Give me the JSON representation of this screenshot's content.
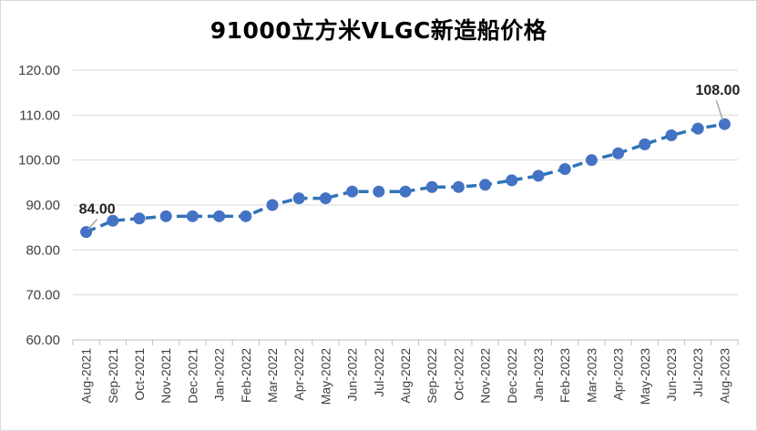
{
  "chart_data": {
    "type": "line",
    "title": "91000立方米VLGC新造船价格",
    "xlabel": "",
    "ylabel": "",
    "categories": [
      "Aug-2021",
      "Sep-2021",
      "Oct-2021",
      "Nov-2021",
      "Dec-2021",
      "Jan-2022",
      "Feb-2022",
      "Mar-2022",
      "Apr-2022",
      "May-2022",
      "Jun-2022",
      "Jul-2022",
      "Aug-2022",
      "Sep-2022",
      "Oct-2022",
      "Nov-2022",
      "Dec-2022",
      "Jan-2023",
      "Feb-2023",
      "Mar-2023",
      "Apr-2023",
      "May-2023",
      "Jun-2023",
      "Jul-2023",
      "Aug-2023"
    ],
    "values": [
      84.0,
      86.5,
      87.0,
      87.5,
      87.5,
      87.5,
      87.5,
      90.0,
      91.5,
      91.5,
      93.0,
      93.0,
      93.0,
      94.0,
      94.0,
      94.5,
      95.5,
      96.5,
      98.0,
      100.0,
      101.5,
      103.5,
      105.5,
      107.0,
      108.0
    ],
    "ylim": [
      60,
      120
    ],
    "yticks": [
      "60.00",
      "70.00",
      "80.00",
      "90.00",
      "100.00",
      "110.00",
      "120.00"
    ],
    "data_labels": [
      {
        "index": 0,
        "text": "84.00"
      },
      {
        "index": 24,
        "text": "108.00"
      }
    ],
    "grid": true,
    "legend": "none",
    "colors": {
      "line": "#2e75b6",
      "marker": "#4472c4",
      "grid": "#d9d9d9",
      "leader": "#a6a6a6"
    }
  }
}
